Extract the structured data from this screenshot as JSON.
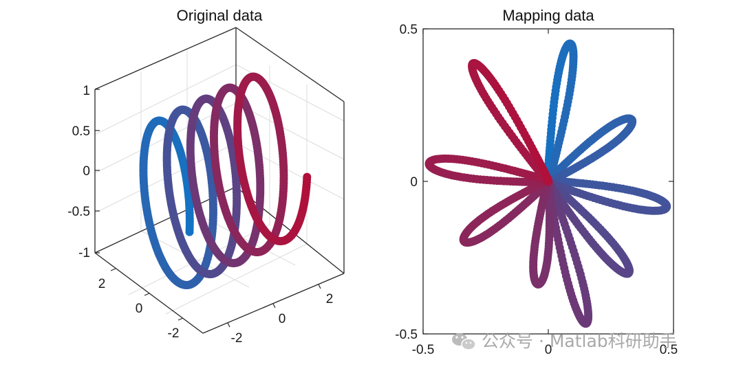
{
  "chart_data": [
    {
      "type": "scatter",
      "projection": "3d",
      "title": "Original data",
      "xlabel": "",
      "ylabel": "",
      "zlabel": "",
      "xlim": [
        -3,
        3
      ],
      "ylim": [
        -3,
        3
      ],
      "zlim": [
        -1,
        1
      ],
      "x_ticks": [
        "-2",
        "0",
        "2"
      ],
      "y_ticks": [
        "-2",
        "0",
        "2"
      ],
      "z_ticks": [
        "-1",
        "-0.5",
        "0",
        "0.5",
        "1"
      ],
      "grid": true,
      "box": true,
      "colormap": [
        "#1473C4",
        "#6A3A78",
        "#B0103A"
      ],
      "series": [
        {
          "shape": "helix",
          "turns": 5,
          "radius": 1,
          "axis_from": [
            0,
            -2.5,
            0
          ],
          "axis_to": [
            0,
            2.5,
            0
          ],
          "points": 1000
        }
      ]
    },
    {
      "type": "scatter",
      "title": "Mapping data",
      "xlabel": "",
      "ylabel": "",
      "xlim": [
        -0.5,
        0.5
      ],
      "ylim": [
        -0.5,
        0.5
      ],
      "x_ticks": [
        "-0.5",
        "0",
        "0.5"
      ],
      "y_ticks": [
        "-0.5",
        "0",
        "0.5"
      ],
      "box": true,
      "colormap": [
        "#1473C4",
        "#6A3A78",
        "#B0103A"
      ],
      "series": [
        {
          "shape": "star",
          "petals": 9,
          "points": 1000,
          "petal_angles_deg": [
            79,
            31,
            -10,
            -43,
            -72,
            -97,
            -150,
            173,
            128
          ],
          "petal_lengths": [
            0.46,
            0.39,
            0.48,
            0.44,
            0.49,
            0.34,
            0.39,
            0.48,
            0.49
          ]
        }
      ]
    }
  ],
  "watermark": {
    "text": "公众号 · Matlab科研助手",
    "icon": "wechat-icon"
  }
}
